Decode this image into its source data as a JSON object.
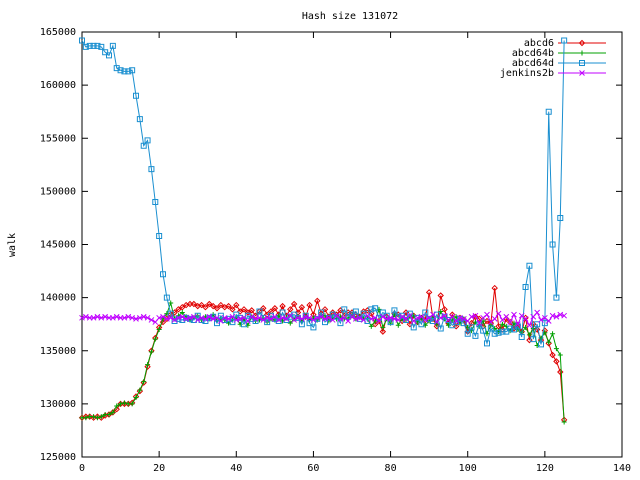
{
  "chart_data": {
    "type": "line",
    "title": "Hash size 131072",
    "y_label": "walk",
    "xlim": [
      0,
      140
    ],
    "xticks": [
      0,
      20,
      40,
      60,
      80,
      100,
      120,
      140
    ],
    "ylim": [
      125000,
      165000
    ],
    "yticks": [
      125000,
      130000,
      135000,
      140000,
      145000,
      150000,
      155000,
      160000,
      165000
    ],
    "grid": false,
    "legend": "top-right",
    "x": [
      0,
      1,
      2,
      3,
      4,
      5,
      6,
      7,
      8,
      9,
      10,
      11,
      12,
      13,
      14,
      15,
      16,
      17,
      18,
      19,
      20,
      21,
      22,
      23,
      24,
      25,
      26,
      27,
      28,
      29,
      30,
      31,
      32,
      33,
      34,
      35,
      36,
      37,
      38,
      39,
      40,
      41,
      42,
      43,
      44,
      45,
      46,
      47,
      48,
      49,
      50,
      51,
      52,
      53,
      54,
      55,
      56,
      57,
      58,
      59,
      60,
      61,
      62,
      63,
      64,
      65,
      66,
      67,
      68,
      69,
      70,
      71,
      72,
      73,
      74,
      75,
      76,
      77,
      78,
      79,
      80,
      81,
      82,
      83,
      84,
      85,
      86,
      87,
      88,
      89,
      90,
      91,
      92,
      93,
      94,
      95,
      96,
      97,
      98,
      99,
      100,
      101,
      102,
      103,
      104,
      105,
      106,
      107,
      108,
      109,
      110,
      111,
      112,
      113,
      114,
      115,
      116,
      117,
      118,
      119,
      120,
      121,
      122,
      123,
      124,
      125
    ],
    "series": [
      {
        "name": "abcd6",
        "color": "#e00000",
        "marker": "diamond",
        "values": [
          128700,
          128800,
          128800,
          128700,
          128800,
          128700,
          128900,
          129000,
          129200,
          129500,
          130000,
          130000,
          130000,
          130100,
          130700,
          131200,
          132000,
          133500,
          135000,
          136200,
          137200,
          137700,
          138000,
          138400,
          138600,
          138900,
          139100,
          139300,
          139400,
          139400,
          139200,
          139300,
          139100,
          139400,
          139200,
          139000,
          139300,
          139100,
          139200,
          138900,
          139300,
          138700,
          138900,
          138600,
          138800,
          138300,
          138700,
          139000,
          138400,
          138700,
          139000,
          138400,
          139200,
          138300,
          138900,
          139400,
          138600,
          139100,
          138200,
          139300,
          138400,
          139700,
          138500,
          138900,
          138200,
          138600,
          138400,
          138800,
          138300,
          138600,
          138600,
          138400,
          138200,
          138700,
          138800,
          138500,
          137500,
          137800,
          136800,
          138200,
          137900,
          138500,
          138400,
          137800,
          138600,
          137500,
          138300,
          137700,
          138100,
          137900,
          140500,
          138000,
          137300,
          140200,
          138900,
          137600,
          138400,
          137300,
          138100,
          137900,
          136800,
          137600,
          138200,
          138000,
          137300,
          137800,
          137600,
          140900,
          137300,
          137000,
          138000,
          137700,
          137100,
          137400,
          136800,
          138100,
          136000,
          137500,
          137000,
          136000,
          136900,
          135700,
          134600,
          134000,
          133000,
          128500
        ]
      },
      {
        "name": "abcd64b",
        "color": "#00a000",
        "marker": "plus",
        "values": [
          128700,
          128700,
          128800,
          128800,
          128700,
          128800,
          129000,
          129000,
          129200,
          129800,
          130000,
          130100,
          130000,
          130000,
          130600,
          131300,
          132100,
          133700,
          134900,
          136100,
          137000,
          138000,
          138500,
          139500,
          138000,
          138300,
          138600,
          138200,
          137900,
          138100,
          138300,
          137900,
          138200,
          138000,
          138400,
          137800,
          138000,
          137900,
          137600,
          137900,
          138100,
          137500,
          138000,
          137400,
          138200,
          137800,
          137900,
          138100,
          137700,
          138000,
          137900,
          138300,
          137800,
          138100,
          137600,
          138000,
          138200,
          137800,
          138300,
          137900,
          138100,
          137900,
          138200,
          138300,
          137800,
          138100,
          138000,
          138200,
          138000,
          138100,
          138300,
          138000,
          138200,
          138100,
          138000,
          137300,
          137800,
          138900,
          137200,
          138000,
          137600,
          138400,
          137400,
          138000,
          137900,
          138200,
          138300,
          137700,
          138100,
          137400,
          137800,
          138100,
          137500,
          138700,
          138000,
          137400,
          137900,
          138200,
          137600,
          138000,
          137200,
          136900,
          137700,
          137300,
          137800,
          136600,
          137400,
          137100,
          136800,
          137500,
          137300,
          136900,
          137600,
          137000,
          136700,
          137200,
          136500,
          137100,
          135500,
          136200,
          136700,
          135800,
          136600,
          135200,
          134600,
          128300
        ]
      },
      {
        "name": "abcd64d",
        "color": "#1a8fd0",
        "marker": "square",
        "values": [
          164200,
          163600,
          163700,
          163700,
          163700,
          163600,
          163100,
          162800,
          163700,
          161600,
          161400,
          161300,
          161300,
          161400,
          159000,
          156800,
          154300,
          154800,
          152100,
          149000,
          145800,
          142200,
          140000,
          138500,
          137800,
          138000,
          137900,
          138100,
          138000,
          137900,
          138300,
          137900,
          137800,
          138100,
          138200,
          137600,
          138300,
          137900,
          138000,
          137700,
          138400,
          138100,
          137500,
          138300,
          138000,
          137800,
          138700,
          138100,
          137700,
          138300,
          138000,
          137800,
          138600,
          137900,
          138200,
          138400,
          138100,
          137500,
          138300,
          137600,
          137200,
          138000,
          138600,
          137700,
          138100,
          138400,
          138200,
          137600,
          138900,
          138200,
          138400,
          138700,
          138000,
          138500,
          137800,
          138900,
          139000,
          138100,
          138600,
          138300,
          137700,
          138800,
          138200,
          138300,
          137900,
          138500,
          137200,
          138100,
          137500,
          138600,
          138000,
          137800,
          138400,
          137100,
          138200,
          137900,
          137400,
          137700,
          138000,
          137600,
          136600,
          137200,
          136400,
          137500,
          136900,
          135700,
          137100,
          136600,
          136700,
          136800,
          136800,
          137100,
          137000,
          137300,
          136300,
          141000,
          143000,
          136100,
          137500,
          135600,
          137600,
          157500,
          145000,
          140000,
          147500,
          164200
        ]
      },
      {
        "name": "jenkins2b",
        "color": "#c000ff",
        "marker": "cross",
        "values": [
          138100,
          138200,
          138100,
          138100,
          138200,
          138100,
          138200,
          138100,
          138100,
          138200,
          138100,
          138100,
          138200,
          138100,
          138000,
          138100,
          138200,
          138100,
          137900,
          137700,
          138100,
          138200,
          138000,
          138100,
          137900,
          138100,
          138200,
          138000,
          138100,
          138200,
          137900,
          138100,
          138000,
          138200,
          138000,
          138100,
          137800,
          138100,
          138000,
          138200,
          137900,
          138000,
          138100,
          137800,
          138200,
          138000,
          138100,
          137900,
          138100,
          138000,
          138200,
          137900,
          138100,
          138000,
          138300,
          137900,
          138100,
          138000,
          138200,
          138100,
          137900,
          138100,
          138200,
          138000,
          138100,
          137900,
          138300,
          138000,
          138100,
          137800,
          138200,
          138000,
          138100,
          137900,
          138300,
          138000,
          138100,
          137800,
          138200,
          138000,
          138100,
          138000,
          137900,
          138200,
          138000,
          138300,
          137800,
          138100,
          138200,
          137900,
          138100,
          138400,
          137700,
          138100,
          138300,
          137900,
          138200,
          137800,
          138100,
          138000,
          137800,
          138200,
          138300,
          137600,
          138100,
          138400,
          137700,
          138000,
          138500,
          137900,
          138200,
          137700,
          138400,
          137500,
          138300,
          138000,
          137400,
          138200,
          138600,
          137900,
          138100,
          137800,
          138300,
          138200,
          138400,
          138300
        ]
      }
    ]
  }
}
